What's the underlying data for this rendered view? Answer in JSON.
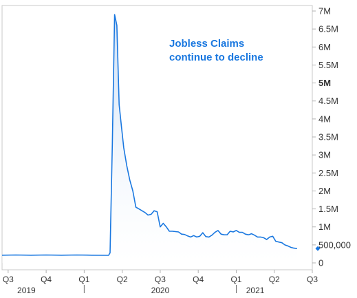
{
  "chart_data": {
    "type": "area",
    "title": "",
    "annotation": [
      "Jobless Claims",
      "continue to decline"
    ],
    "colors": {
      "line": "#1a78e0",
      "fill_top": "#c9ddf5",
      "fill_bottom": "#ffffff",
      "annotation": "#1a78e0",
      "marker": "#1a78e0"
    },
    "grid": false,
    "legend": "none",
    "x_range": [
      2019.46,
      2021.5
    ],
    "ylim": [
      0,
      7000000
    ],
    "yticks": [
      {
        "value": 0,
        "label": "0"
      },
      {
        "value": 500000,
        "label": "500,000"
      },
      {
        "value": 1000000,
        "label": "1M"
      },
      {
        "value": 1500000,
        "label": "1.5M"
      },
      {
        "value": 2000000,
        "label": "2M"
      },
      {
        "value": 2500000,
        "label": "2.5M"
      },
      {
        "value": 3000000,
        "label": "3M"
      },
      {
        "value": 3500000,
        "label": "3.5M"
      },
      {
        "value": 4000000,
        "label": "4M"
      },
      {
        "value": 4500000,
        "label": "4.5M"
      },
      {
        "value": 5000000,
        "label": "5M",
        "bold": true
      },
      {
        "value": 5500000,
        "label": "5.5M"
      },
      {
        "value": 6000000,
        "label": "6M"
      },
      {
        "value": 6500000,
        "label": "6.5M"
      },
      {
        "value": 7000000,
        "label": "7M"
      }
    ],
    "quarter_ticks": [
      {
        "x": 2019.5,
        "label": "Q3"
      },
      {
        "x": 2019.75,
        "label": "Q4"
      },
      {
        "x": 2020.0,
        "label": "Q1"
      },
      {
        "x": 2020.25,
        "label": "Q2"
      },
      {
        "x": 2020.5,
        "label": "Q3"
      },
      {
        "x": 2020.75,
        "label": "Q4"
      },
      {
        "x": 2021.0,
        "label": "Q1"
      },
      {
        "x": 2021.25,
        "label": "Q2"
      },
      {
        "x": 2021.5,
        "label": "Q3"
      }
    ],
    "years": [
      {
        "x": 2019.62,
        "label": "2019"
      },
      {
        "x": 2020.5,
        "label": "2020"
      },
      {
        "x": 2021.125,
        "label": "2021"
      }
    ],
    "year_separators": [
      2020.0,
      2021.0
    ],
    "last_value_marker": 400000,
    "series": [
      {
        "x": [
          2019.46,
          2019.55,
          2019.65,
          2019.75,
          2019.85,
          2019.95,
          2020.05,
          2020.16,
          2020.17,
          2020.185,
          2020.2,
          2020.215,
          2020.23,
          2020.245,
          2020.26,
          2020.28,
          2020.3,
          2020.32,
          2020.34,
          2020.36,
          2020.38,
          2020.4,
          2020.42,
          2020.44,
          2020.46,
          2020.48,
          2020.5,
          2020.52,
          2020.54,
          2020.56,
          2020.58,
          2020.6,
          2020.62,
          2020.64,
          2020.66,
          2020.68,
          2020.7,
          2020.72,
          2020.74,
          2020.76,
          2020.78,
          2020.8,
          2020.82,
          2020.84,
          2020.86,
          2020.88,
          2020.9,
          2020.92,
          2020.94,
          2020.96,
          2020.98,
          2021.0,
          2021.02,
          2021.04,
          2021.06,
          2021.08,
          2021.1,
          2021.12,
          2021.14,
          2021.16,
          2021.18,
          2021.2,
          2021.22,
          2021.24,
          2021.26,
          2021.28,
          2021.3,
          2021.32,
          2021.34,
          2021.36,
          2021.38,
          2021.4
        ],
        "values": [
          215000,
          220000,
          215000,
          220000,
          215000,
          220000,
          215000,
          210000,
          280000,
          3300000,
          6900000,
          6600000,
          4400000,
          3800000,
          3200000,
          2700000,
          2300000,
          2000000,
          1550000,
          1500000,
          1450000,
          1400000,
          1330000,
          1350000,
          1450000,
          1420000,
          1000000,
          1100000,
          1000000,
          880000,
          880000,
          870000,
          860000,
          800000,
          790000,
          750000,
          720000,
          760000,
          720000,
          740000,
          840000,
          730000,
          720000,
          770000,
          850000,
          900000,
          800000,
          780000,
          780000,
          880000,
          860000,
          900000,
          850000,
          850000,
          800000,
          780000,
          810000,
          770000,
          720000,
          720000,
          700000,
          650000,
          720000,
          740000,
          600000,
          580000,
          560000,
          500000,
          470000,
          430000,
          410000,
          400000
        ]
      }
    ]
  }
}
